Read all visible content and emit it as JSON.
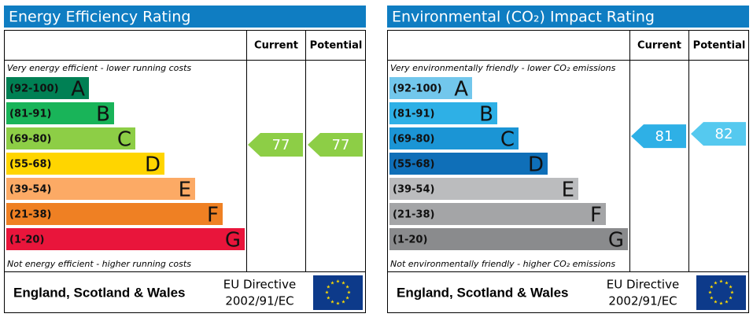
{
  "panels": [
    {
      "title": "Energy Efficiency Rating",
      "header_current": "Current",
      "header_potential": "Potential",
      "top_note": "Very energy efficient - lower running costs",
      "bottom_note": "Not energy efficient - higher running costs",
      "bands": [
        {
          "range": "(92-100)",
          "letter": "A",
          "color": "#008054"
        },
        {
          "range": "(81-91)",
          "letter": "B",
          "color": "#19b459"
        },
        {
          "range": "(69-80)",
          "letter": "C",
          "color": "#8dce46"
        },
        {
          "range": "(55-68)",
          "letter": "D",
          "color": "#ffd500"
        },
        {
          "range": "(39-54)",
          "letter": "E",
          "color": "#fcaa65"
        },
        {
          "range": "(21-38)",
          "letter": "F",
          "color": "#ef8023"
        },
        {
          "range": "(1-20)",
          "letter": "G",
          "color": "#e9153b"
        }
      ],
      "current": 77,
      "current_color": "#8dce46",
      "potential": 77,
      "potential_color": "#8dce46",
      "footer_region": "England, Scotland & Wales",
      "directive_line1": "EU Directive",
      "directive_line2": "2002/91/EC"
    },
    {
      "title": "Environmental (CO₂) Impact Rating",
      "header_current": "Current",
      "header_potential": "Potential",
      "top_note": "Very environmentally friendly - lower CO₂ emissions",
      "bottom_note": "Not environmentally friendly - higher CO₂ emissions",
      "bands": [
        {
          "range": "(92-100)",
          "letter": "A",
          "color": "#72c7ec"
        },
        {
          "range": "(81-91)",
          "letter": "B",
          "color": "#2eb0e6"
        },
        {
          "range": "(69-80)",
          "letter": "C",
          "color": "#1b95d5"
        },
        {
          "range": "(55-68)",
          "letter": "D",
          "color": "#0f6fb8"
        },
        {
          "range": "(39-54)",
          "letter": "E",
          "color": "#bbbcbe"
        },
        {
          "range": "(21-38)",
          "letter": "F",
          "color": "#a4a5a7"
        },
        {
          "range": "(1-20)",
          "letter": "G",
          "color": "#8a8b8d"
        }
      ],
      "current": 81,
      "current_color": "#2eb0e6",
      "potential": 82,
      "potential_color": "#55c9ef",
      "footer_region": "England, Scotland & Wales",
      "directive_line1": "EU Directive",
      "directive_line2": "2002/91/EC"
    }
  ]
}
